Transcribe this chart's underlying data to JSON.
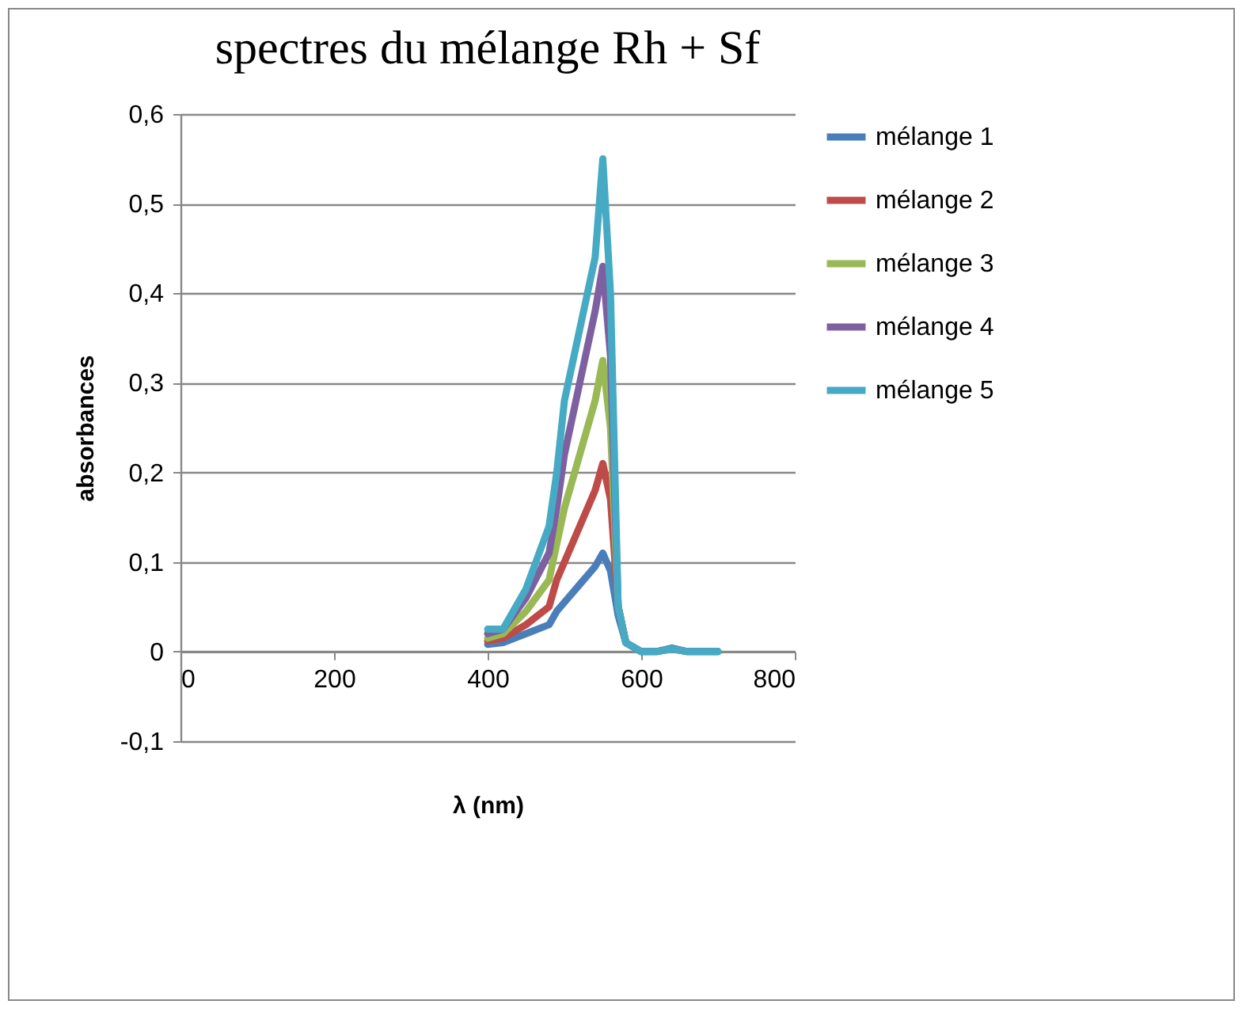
{
  "chart_data": {
    "type": "line",
    "title": "spectres du mélange Rh + Sf",
    "xlabel": "λ (nm)",
    "ylabel": "absorbances",
    "x": [
      400,
      420,
      450,
      480,
      490,
      500,
      520,
      540,
      550,
      560,
      570,
      580,
      600,
      620,
      640,
      660,
      700
    ],
    "series": [
      {
        "name": "mélange 1",
        "color": "#4a7ebb",
        "values": [
          0.008,
          0.01,
          0.02,
          0.03,
          0.045,
          0.055,
          0.075,
          0.095,
          0.11,
          0.09,
          0.04,
          0.01,
          0,
          0,
          0.004,
          0,
          0
        ]
      },
      {
        "name": "mélange 2",
        "color": "#be4b48",
        "values": [
          0.012,
          0.015,
          0.03,
          0.05,
          0.08,
          0.1,
          0.14,
          0.18,
          0.21,
          0.17,
          0.05,
          0.01,
          null,
          null,
          null,
          null,
          null
        ]
      },
      {
        "name": "mélange 3",
        "color": "#98b954",
        "values": [
          0.015,
          0.02,
          0.045,
          0.08,
          0.12,
          0.16,
          0.22,
          0.28,
          0.325,
          0.25,
          0.05,
          0.01,
          null,
          null,
          null,
          null,
          null
        ]
      },
      {
        "name": "mélange 4",
        "color": "#7d60a0",
        "values": [
          0.02,
          0.025,
          0.06,
          0.11,
          0.16,
          0.22,
          0.3,
          0.38,
          0.43,
          0.33,
          0.05,
          0.01,
          0,
          0,
          0.003,
          0,
          0
        ]
      },
      {
        "name": "mélange 5",
        "color": "#46aac5",
        "values": [
          0.025,
          0.025,
          0.07,
          0.14,
          0.2,
          0.28,
          0.36,
          0.44,
          0.55,
          0.4,
          0.05,
          0.01,
          0,
          0,
          0.003,
          0,
          0
        ]
      }
    ],
    "xlim": [
      0,
      800
    ],
    "xticks": [
      0,
      200,
      400,
      600,
      800
    ],
    "ylim": [
      -0.1,
      0.6
    ],
    "yticks": [
      {
        "value": -0.1,
        "label": "-0,1"
      },
      {
        "value": 0,
        "label": "0"
      },
      {
        "value": 0.1,
        "label": "0,1"
      },
      {
        "value": 0.2,
        "label": "0,2"
      },
      {
        "value": 0.3,
        "label": "0,3"
      },
      {
        "value": 0.4,
        "label": "0,4"
      },
      {
        "value": 0.5,
        "label": "0,5"
      },
      {
        "value": 0.6,
        "label": "0,6"
      }
    ],
    "grid": "y",
    "legend": "right",
    "marker": "none",
    "line_style": "solid"
  }
}
